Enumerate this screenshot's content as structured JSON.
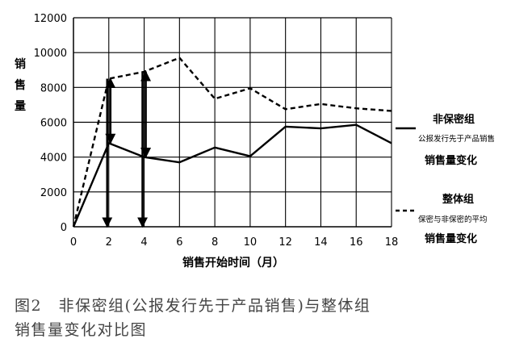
{
  "chart_data": {
    "type": "line",
    "ylabel": "销售量",
    "xlabel": "销售开始时间（月）",
    "x": [
      0,
      2,
      4,
      6,
      8,
      10,
      12,
      14,
      16,
      18
    ],
    "xlim": [
      0,
      18
    ],
    "ylim": [
      0,
      12000
    ],
    "yticks": [
      0,
      2000,
      4000,
      6000,
      8000,
      10000,
      12000
    ],
    "xticks": [
      0,
      2,
      4,
      6,
      8,
      10,
      12,
      14,
      16,
      18
    ],
    "grid": "vertical and horizontal gridlines",
    "legend_position": "right",
    "series": [
      {
        "name": "非保密组",
        "subname": "公报发行先于产品销售",
        "suffix": "销售量变化",
        "style": "solid",
        "values": [
          0,
          4800,
          4000,
          3700,
          4550,
          4050,
          5750,
          5650,
          5850,
          4800
        ]
      },
      {
        "name": "整体组",
        "subname": "保密与非保密的平均",
        "suffix": "销售量变化",
        "style": "dashed",
        "values": [
          0,
          8500,
          8900,
          9700,
          7350,
          7950,
          6750,
          7050,
          6800,
          6650
        ]
      }
    ],
    "annotations": [
      {
        "type": "double-arrow",
        "x": 2,
        "y_from": 8500,
        "y_to": 4800
      },
      {
        "type": "arrow",
        "x": 2,
        "y_from": 8500,
        "y_to": 0
      },
      {
        "type": "double-arrow",
        "x": 4,
        "y_from": 8900,
        "y_to": 4000
      },
      {
        "type": "arrow",
        "x": 4,
        "y_from": 8900,
        "y_to": 0
      }
    ]
  },
  "caption": {
    "line1": "图2　非保密组(公报发行先于产品销售)与整体组",
    "line2": "销售量变化对比图"
  }
}
